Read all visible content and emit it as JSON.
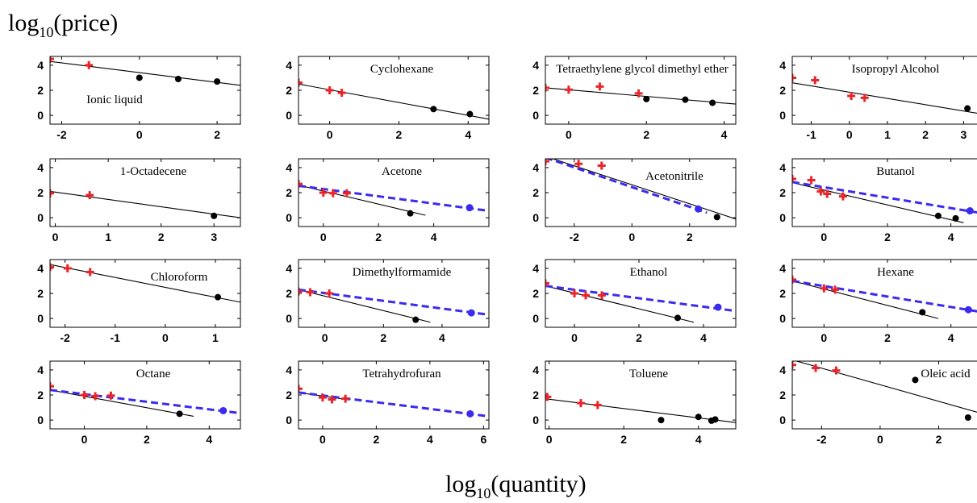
{
  "figure": {
    "ylabel_base": "log",
    "ylabel_sub": "10",
    "ylabel_arg": "(price)",
    "xlabel_base": "log",
    "xlabel_sub": "10",
    "xlabel_arg": "(quantity)"
  },
  "colors": {
    "red": "#e8262a",
    "black": "#000000",
    "blue": "#3b2bf0",
    "fit": "#000000"
  },
  "chart_data": [
    {
      "type": "scatter",
      "title": "Ionic liquid",
      "xlim": [
        -2.3,
        2.6
      ],
      "xticks": [
        -2,
        0,
        2
      ],
      "ylim": [
        -0.7,
        4.7
      ],
      "yticks": [
        0,
        2,
        4
      ],
      "red_points": [
        [
          -2.3,
          4.5
        ],
        [
          -1.3,
          4.0
        ]
      ],
      "black_points": [
        [
          0.0,
          3.0
        ],
        [
          1.0,
          2.9
        ],
        [
          2.0,
          2.7
        ]
      ],
      "blue_points": [],
      "black_line": [
        [
          -2.3,
          4.3
        ],
        [
          2.6,
          2.4
        ]
      ],
      "blue_line": null
    },
    {
      "type": "scatter",
      "title": "Cyclohexane",
      "xlim": [
        -0.9,
        4.6
      ],
      "xticks": [
        0,
        2,
        4
      ],
      "ylim": [
        -0.7,
        4.7
      ],
      "yticks": [
        0,
        2,
        4
      ],
      "red_points": [
        [
          -0.9,
          2.6
        ],
        [
          0.0,
          2.0
        ],
        [
          0.35,
          1.8
        ]
      ],
      "black_points": [
        [
          3.0,
          0.5
        ],
        [
          4.05,
          0.1
        ]
      ],
      "blue_points": [],
      "black_line": [
        [
          -0.9,
          2.5
        ],
        [
          4.6,
          -0.3
        ]
      ],
      "blue_line": null
    },
    {
      "type": "scatter",
      "title": "Tetraethylene glycol dimethyl ether",
      "xlim": [
        -0.6,
        4.3
      ],
      "xticks": [
        0,
        2,
        4
      ],
      "ylim": [
        -0.7,
        4.7
      ],
      "yticks": [
        0,
        2,
        4
      ],
      "red_points": [
        [
          -0.6,
          2.2
        ],
        [
          0.0,
          2.05
        ],
        [
          0.8,
          2.3
        ],
        [
          1.8,
          1.75
        ]
      ],
      "black_points": [
        [
          2.0,
          1.3
        ],
        [
          3.0,
          1.25
        ],
        [
          3.7,
          1.0
        ]
      ],
      "blue_points": [],
      "black_line": [
        [
          -0.6,
          2.2
        ],
        [
          4.3,
          0.9
        ]
      ],
      "blue_line": null
    },
    {
      "type": "scatter",
      "title": "Isopropyl Alcohol",
      "xlim": [
        -1.5,
        3.5
      ],
      "xticks": [
        -1,
        0,
        1,
        2,
        3
      ],
      "ylim": [
        -0.7,
        4.7
      ],
      "yticks": [
        0,
        2,
        4
      ],
      "red_points": [
        [
          -1.5,
          3.0
        ],
        [
          -0.9,
          2.8
        ],
        [
          0.05,
          1.55
        ],
        [
          0.4,
          1.4
        ]
      ],
      "black_points": [
        [
          3.1,
          0.55
        ]
      ],
      "blue_points": [],
      "black_line": [
        [
          -1.5,
          2.6
        ],
        [
          3.5,
          0.1
        ]
      ],
      "blue_line": null
    },
    {
      "type": "scatter",
      "title": "1-Octadecene",
      "xlim": [
        -0.1,
        3.5
      ],
      "xticks": [
        0,
        1,
        2,
        3
      ],
      "ylim": [
        -0.7,
        4.7
      ],
      "yticks": [
        0,
        2,
        4
      ],
      "red_points": [
        [
          -0.1,
          1.95
        ],
        [
          0.65,
          1.8
        ]
      ],
      "black_points": [
        [
          3.0,
          0.15
        ]
      ],
      "blue_points": [],
      "black_line": [
        [
          -0.1,
          2.1
        ],
        [
          3.5,
          0.0
        ]
      ],
      "blue_line": null
    },
    {
      "type": "scatter",
      "title": "Acetone",
      "xlim": [
        -0.9,
        6.0
      ],
      "xticks": [
        0,
        2,
        4
      ],
      "ylim": [
        -0.7,
        4.7
      ],
      "yticks": [
        0,
        2,
        4
      ],
      "red_points": [
        [
          -0.9,
          2.7
        ],
        [
          0.0,
          2.0
        ],
        [
          0.35,
          1.95
        ],
        [
          0.85,
          1.95
        ]
      ],
      "black_points": [
        [
          3.15,
          0.35
        ]
      ],
      "blue_points": [
        [
          5.3,
          0.8
        ]
      ],
      "black_line": [
        [
          -0.9,
          2.6
        ],
        [
          3.7,
          0.2
        ]
      ],
      "blue_line": [
        [
          -0.9,
          2.55
        ],
        [
          6.0,
          0.55
        ]
      ]
    },
    {
      "type": "scatter",
      "title": "Acetonitrile",
      "xlim": [
        -3.0,
        3.6
      ],
      "xticks": [
        -2,
        0,
        2
      ],
      "ylim": [
        -0.7,
        4.7
      ],
      "yticks": [
        0,
        2,
        4
      ],
      "red_points": [
        [
          -3.0,
          4.5
        ],
        [
          -1.85,
          4.3
        ],
        [
          -1.05,
          4.15
        ]
      ],
      "black_points": [
        [
          2.95,
          0.05
        ]
      ],
      "blue_points": [
        [
          2.3,
          0.7
        ]
      ],
      "black_line": [
        [
          -3.0,
          4.9
        ],
        [
          3.6,
          -0.1
        ]
      ],
      "blue_line": [
        [
          -3.0,
          4.8
        ],
        [
          2.6,
          0.4
        ]
      ]
    },
    {
      "type": "scatter",
      "title": "Butanol",
      "xlim": [
        -1.0,
        5.0
      ],
      "xticks": [
        0,
        2,
        4
      ],
      "ylim": [
        -0.7,
        4.7
      ],
      "yticks": [
        0,
        2,
        4
      ],
      "red_points": [
        [
          -1.0,
          3.1
        ],
        [
          -0.4,
          3.0
        ],
        [
          -0.1,
          2.1
        ],
        [
          0.1,
          1.9
        ],
        [
          0.6,
          1.7
        ]
      ],
      "black_points": [
        [
          3.6,
          0.15
        ],
        [
          4.15,
          -0.05
        ]
      ],
      "blue_points": [
        [
          4.6,
          0.55
        ]
      ],
      "black_line": [
        [
          -1.0,
          2.8
        ],
        [
          4.4,
          -0.4
        ]
      ],
      "blue_line": [
        [
          -1.0,
          2.85
        ],
        [
          5.0,
          0.35
        ]
      ]
    },
    {
      "type": "scatter",
      "title": "Chloroform",
      "xlim": [
        -2.3,
        1.5
      ],
      "xticks": [
        -2,
        -1,
        0,
        1
      ],
      "ylim": [
        -0.7,
        4.7
      ],
      "yticks": [
        0,
        2,
        4
      ],
      "red_points": [
        [
          -2.3,
          4.1
        ],
        [
          -1.95,
          4.0
        ],
        [
          -1.5,
          3.7
        ]
      ],
      "black_points": [
        [
          1.05,
          1.7
        ]
      ],
      "blue_points": [],
      "black_line": [
        [
          -2.3,
          4.3
        ],
        [
          1.5,
          1.3
        ]
      ],
      "blue_line": null
    },
    {
      "type": "scatter",
      "title": "Dimethylformamide",
      "xlim": [
        -0.9,
        5.6
      ],
      "xticks": [
        0,
        2,
        4
      ],
      "ylim": [
        -0.7,
        4.7
      ],
      "yticks": [
        0,
        2,
        4
      ],
      "red_points": [
        [
          -0.9,
          2.15
        ],
        [
          -0.5,
          2.1
        ],
        [
          0.15,
          2.0
        ]
      ],
      "black_points": [
        [
          3.1,
          -0.1
        ]
      ],
      "blue_points": [
        [
          5.0,
          0.45
        ]
      ],
      "black_line": [
        [
          -0.9,
          2.3
        ],
        [
          3.6,
          -0.3
        ]
      ],
      "blue_line": [
        [
          -0.9,
          2.3
        ],
        [
          5.6,
          0.3
        ]
      ]
    },
    {
      "type": "scatter",
      "title": "Ethanol",
      "xlim": [
        -0.9,
        5.0
      ],
      "xticks": [
        0,
        2,
        4
      ],
      "ylim": [
        -0.7,
        4.7
      ],
      "yticks": [
        0,
        2,
        4
      ],
      "red_points": [
        [
          -0.9,
          2.8
        ],
        [
          0.0,
          2.0
        ],
        [
          0.35,
          1.85
        ],
        [
          0.85,
          1.85
        ]
      ],
      "black_points": [
        [
          3.2,
          0.05
        ]
      ],
      "blue_points": [
        [
          4.45,
          0.9
        ]
      ],
      "black_line": [
        [
          -0.9,
          2.6
        ],
        [
          3.7,
          -0.3
        ]
      ],
      "blue_line": [
        [
          -0.9,
          2.6
        ],
        [
          5.0,
          0.6
        ]
      ]
    },
    {
      "type": "scatter",
      "title": "Hexane",
      "xlim": [
        -1.0,
        5.0
      ],
      "xticks": [
        0,
        2,
        4
      ],
      "ylim": [
        -0.7,
        4.7
      ],
      "yticks": [
        0,
        2,
        4
      ],
      "red_points": [
        [
          -1.0,
          3.1
        ],
        [
          0.0,
          2.4
        ],
        [
          0.35,
          2.3
        ]
      ],
      "black_points": [
        [
          3.1,
          0.5
        ]
      ],
      "blue_points": [
        [
          4.55,
          0.7
        ]
      ],
      "black_line": [
        [
          -1.0,
          3.0
        ],
        [
          3.6,
          0.0
        ]
      ],
      "blue_line": [
        [
          -1.0,
          3.0
        ],
        [
          5.0,
          0.5
        ]
      ]
    },
    {
      "type": "scatter",
      "title": "Octane",
      "xlim": [
        -1.1,
        5.0
      ],
      "xticks": [
        0,
        2,
        4
      ],
      "ylim": [
        -0.7,
        4.7
      ],
      "yticks": [
        0,
        2,
        4
      ],
      "red_points": [
        [
          -1.1,
          2.7
        ],
        [
          0.0,
          2.0
        ],
        [
          0.35,
          1.9
        ],
        [
          0.85,
          1.95
        ]
      ],
      "black_points": [
        [
          3.05,
          0.5
        ]
      ],
      "blue_points": [
        [
          4.45,
          0.75
        ]
      ],
      "black_line": [
        [
          -1.1,
          2.4
        ],
        [
          3.5,
          0.3
        ]
      ],
      "blue_line": [
        [
          -1.1,
          2.4
        ],
        [
          5.0,
          0.55
        ]
      ]
    },
    {
      "type": "scatter",
      "title": "Tetrahydrofuran",
      "xlim": [
        -0.9,
        6.2
      ],
      "xticks": [
        0,
        2,
        4,
        6
      ],
      "ylim": [
        -0.7,
        4.7
      ],
      "yticks": [
        0,
        2,
        4
      ],
      "red_points": [
        [
          -0.9,
          2.5
        ],
        [
          0.0,
          1.8
        ],
        [
          0.35,
          1.65
        ],
        [
          0.85,
          1.7
        ]
      ],
      "black_points": [],
      "blue_points": [
        [
          5.5,
          0.5
        ]
      ],
      "black_line": [
        [
          -0.9,
          2.2
        ],
        [
          1.0,
          1.6
        ]
      ],
      "blue_line": [
        [
          -0.9,
          2.2
        ],
        [
          6.2,
          0.3
        ]
      ]
    },
    {
      "type": "scatter",
      "title": "Toluene",
      "xlim": [
        -0.1,
        5.0
      ],
      "xticks": [
        0,
        2,
        4
      ],
      "ylim": [
        -0.7,
        4.7
      ],
      "yticks": [
        0,
        2,
        4
      ],
      "red_points": [
        [
          -0.05,
          1.85
        ],
        [
          0.85,
          1.35
        ],
        [
          1.3,
          1.2
        ]
      ],
      "black_points": [
        [
          3.0,
          0.0
        ],
        [
          4.0,
          0.25
        ],
        [
          4.35,
          -0.05
        ],
        [
          4.45,
          0.05
        ]
      ],
      "blue_points": [],
      "black_line": [
        [
          -0.1,
          1.7
        ],
        [
          5.0,
          -0.2
        ]
      ],
      "blue_line": null
    },
    {
      "type": "scatter",
      "title": "Oleic acid",
      "xlim": [
        -3.0,
        3.5
      ],
      "xticks": [
        -2,
        0,
        2
      ],
      "ylim": [
        -0.7,
        4.7
      ],
      "yticks": [
        0,
        2,
        4
      ],
      "red_points": [
        [
          -3.0,
          4.4
        ],
        [
          -2.2,
          4.15
        ],
        [
          -1.5,
          3.95
        ]
      ],
      "black_points": [
        [
          1.2,
          3.2
        ],
        [
          3.0,
          0.2
        ]
      ],
      "blue_points": [],
      "black_line": [
        [
          -3.0,
          4.8
        ],
        [
          3.5,
          0.5
        ]
      ],
      "blue_line": null
    }
  ]
}
